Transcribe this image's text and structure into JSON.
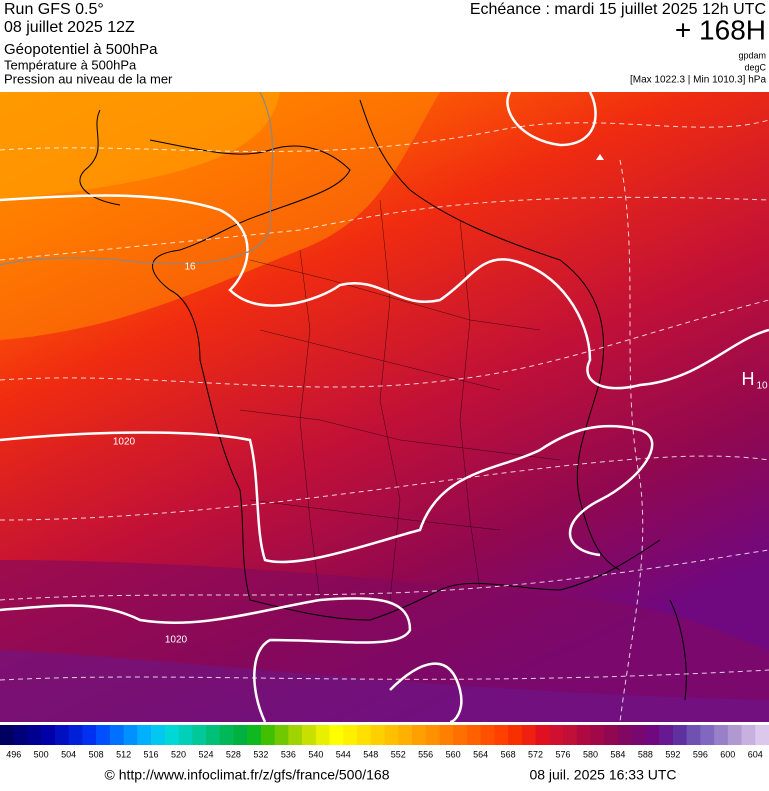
{
  "header": {
    "left": [
      "Run GFS 0.5°",
      "08 juillet 2025 12Z",
      "Géopotentiel à 500hPa",
      "Température à 500hPa",
      "Pression au niveau de la mer"
    ],
    "right": [
      "Echéance : mardi 15 juillet 2025 12h UTC",
      "+ 168H",
      "gpdam",
      "degC",
      "[Max 1022.3 | Min 1010.3] hPa"
    ]
  },
  "map": {
    "labels": [
      "1020",
      "1020",
      "16",
      "H",
      "10"
    ]
  },
  "legend": {
    "labels": [
      496,
      500,
      504,
      508,
      512,
      516,
      520,
      524,
      528,
      532,
      536,
      540,
      544,
      548,
      552,
      556,
      560,
      564,
      568,
      572,
      576,
      580,
      584,
      588,
      592,
      596,
      600,
      604
    ],
    "colors": [
      "#000060",
      "#00007a",
      "#000090",
      "#0000a8",
      "#0010c0",
      "#0020d8",
      "#0030f0",
      "#0050ff",
      "#0070ff",
      "#0090ff",
      "#00b0ff",
      "#00c8f0",
      "#00d8d8",
      "#00d0b8",
      "#00c898",
      "#00c078",
      "#00b858",
      "#00b040",
      "#10b820",
      "#40c000",
      "#70c800",
      "#a0d400",
      "#c8e000",
      "#e8f000",
      "#ffff00",
      "#fff000",
      "#ffe000",
      "#ffd000",
      "#ffc000",
      "#ffb000",
      "#ffa000",
      "#ff9000",
      "#ff8000",
      "#ff7000",
      "#ff6000",
      "#ff5000",
      "#ff4000",
      "#f83000",
      "#f02010",
      "#e01020",
      "#d01030",
      "#c01038",
      "#b00840",
      "#a00848",
      "#900850",
      "#800860",
      "#780870",
      "#700880",
      "#681890",
      "#6030a0",
      "#7050b0",
      "#8068c0",
      "#9880c8",
      "#b098d0",
      "#c8b0e0",
      "#dcc8ec"
    ]
  },
  "footer": {
    "source": "© http://www.infoclimat.fr/z/gfs/france/500/168",
    "timestamp": "08 juil. 2025 16:33 UTC"
  }
}
